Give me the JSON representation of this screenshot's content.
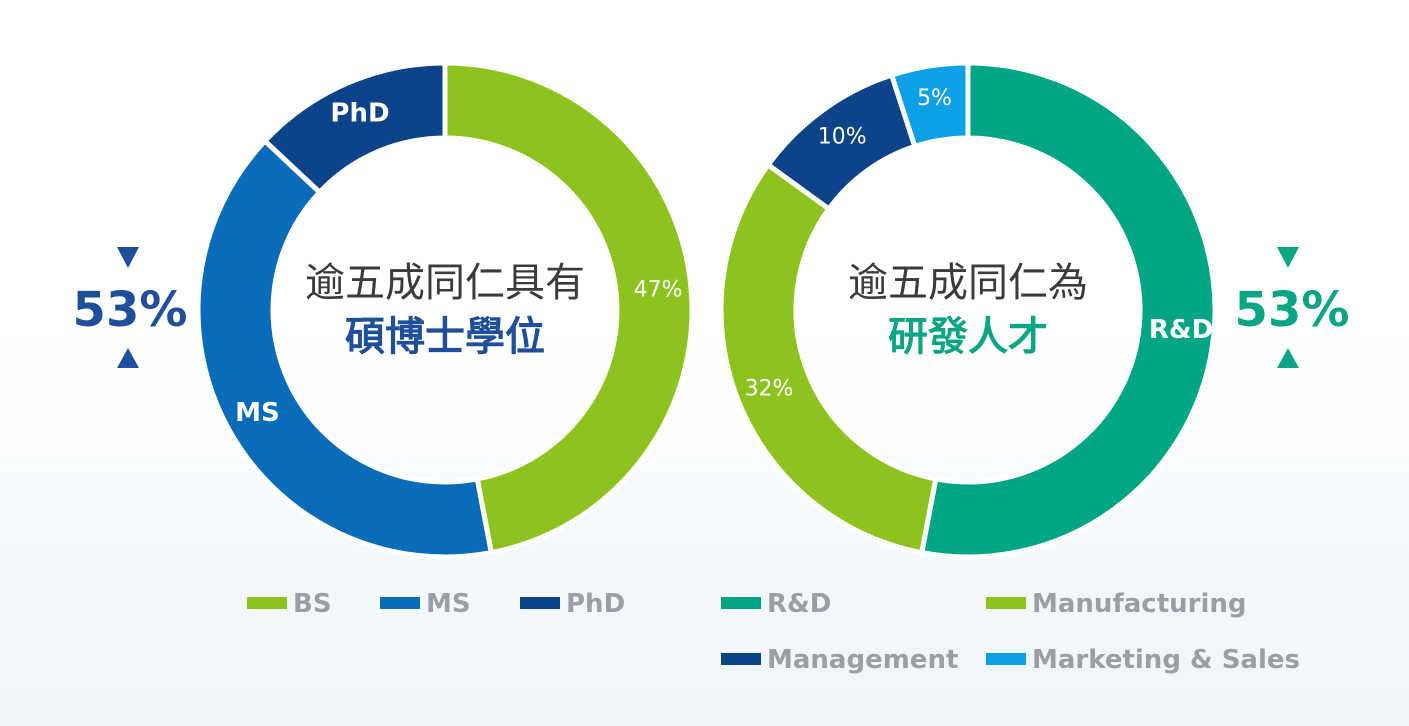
{
  "chart_data": [
    {
      "type": "pie",
      "variant": "donut",
      "center_line1": "逾五成同仁具有",
      "center_line2": "碩博士學位",
      "center_line2_color": "#1f4e9c",
      "side_value": "53%",
      "side_color": "#1f4e9c",
      "side_position": "left",
      "slices": [
        {
          "name": "BS",
          "value": 47,
          "label": "47%",
          "color": "#8dc21f"
        },
        {
          "name": "MS",
          "value": 40,
          "label": "MS",
          "color": "#0a6bb9"
        },
        {
          "name": "PhD",
          "value": 13,
          "label": "PhD",
          "color": "#0c4389"
        }
      ],
      "legend": [
        "BS",
        "MS",
        "PhD"
      ]
    },
    {
      "type": "pie",
      "variant": "donut",
      "center_line1": "逾五成同仁為",
      "center_line2": "研發人才",
      "center_line2_color": "#0aa584",
      "side_value": "53%",
      "side_color": "#0aa584",
      "side_position": "right",
      "slices": [
        {
          "name": "R&D",
          "value": 53,
          "label": "R&D",
          "color": "#00a683"
        },
        {
          "name": "Manufacturing",
          "value": 32,
          "label": "32%",
          "color": "#8dc21f"
        },
        {
          "name": "Management",
          "value": 10,
          "label": "10%",
          "color": "#0c4389"
        },
        {
          "name": "Marketing & Sales",
          "value": 5,
          "label": "5%",
          "color": "#0ea0e6"
        }
      ],
      "legend": [
        "R&D",
        "Manufacturing",
        "Management",
        "Marketing & Sales"
      ]
    }
  ]
}
